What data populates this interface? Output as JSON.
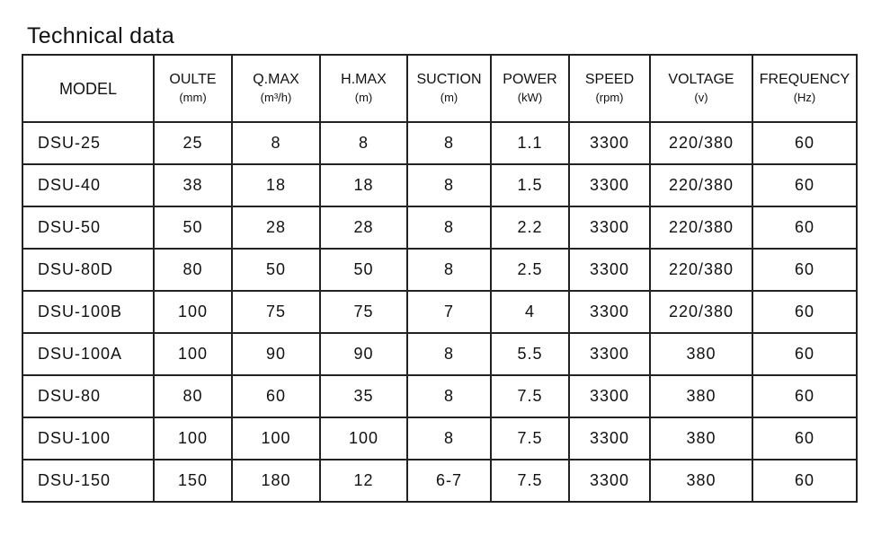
{
  "header": {
    "title": "Technical data"
  },
  "table": {
    "columns": [
      {
        "name": "MODEL",
        "unit": null
      },
      {
        "name": "OULTE",
        "unit": "(mm)"
      },
      {
        "name": "Q.MAX",
        "unit": "(m³/h)"
      },
      {
        "name": "H.MAX",
        "unit": "(m)"
      },
      {
        "name": "SUCTION",
        "unit": "(m)"
      },
      {
        "name": "POWER",
        "unit": "(kW)"
      },
      {
        "name": "SPEED",
        "unit": "(rpm)"
      },
      {
        "name": "VOLTAGE",
        "unit": "(v)"
      },
      {
        "name": "FREQUENCY",
        "unit": "(Hz)"
      }
    ],
    "rows": [
      [
        "DSU-25",
        "25",
        "8",
        "8",
        "8",
        "1.1",
        "3300",
        "220/380",
        "60"
      ],
      [
        "DSU-40",
        "38",
        "18",
        "18",
        "8",
        "1.5",
        "3300",
        "220/380",
        "60"
      ],
      [
        "DSU-50",
        "50",
        "28",
        "28",
        "8",
        "2.2",
        "3300",
        "220/380",
        "60"
      ],
      [
        "DSU-80D",
        "80",
        "50",
        "50",
        "8",
        "2.5",
        "3300",
        "220/380",
        "60"
      ],
      [
        "DSU-100B",
        "100",
        "75",
        "75",
        "7",
        "4",
        "3300",
        "220/380",
        "60"
      ],
      [
        "DSU-100A",
        "100",
        "90",
        "90",
        "8",
        "5.5",
        "3300",
        "380",
        "60"
      ],
      [
        "DSU-80",
        "80",
        "60",
        "35",
        "8",
        "7.5",
        "3300",
        "380",
        "60"
      ],
      [
        "DSU-100",
        "100",
        "100",
        "100",
        "8",
        "7.5",
        "3300",
        "380",
        "60"
      ],
      [
        "DSU-150",
        "150",
        "180",
        "12",
        "6-7",
        "7.5",
        "3300",
        "380",
        "60"
      ]
    ]
  }
}
